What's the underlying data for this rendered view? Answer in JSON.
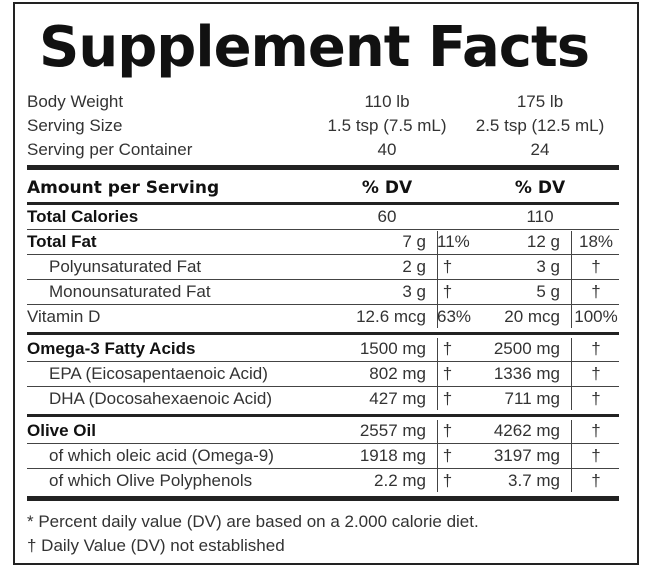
{
  "title": "Supplement Facts",
  "info": [
    {
      "label": "Body Weight",
      "col1": "110 lb",
      "col2": "175 lb"
    },
    {
      "label": "Serving Size",
      "col1": "1.5 tsp (7.5 mL)",
      "col2": "2.5 tsp (12.5 mL)"
    },
    {
      "label": "Serving per Container",
      "col1": "40",
      "col2": "24"
    }
  ],
  "header": {
    "amount": "Amount per Serving",
    "dv1": "% DV",
    "dv2": "% DV"
  },
  "rows": [
    {
      "name": "Total Calories",
      "a": "60",
      "b": "",
      "c": "110",
      "d": ""
    },
    {
      "name": "Total Fat",
      "a": "7 g",
      "b": "11%",
      "c": "12 g",
      "d": "18%"
    },
    {
      "name": "Polyunsaturated Fat",
      "a": "2 g",
      "b": "†",
      "c": "3 g",
      "d": "†"
    },
    {
      "name": "Monounsaturated Fat",
      "a": "3 g",
      "b": "†",
      "c": "5 g",
      "d": "†"
    },
    {
      "name": "Vitamin D",
      "a": "12.6 mcg",
      "b": "63%",
      "c": "20 mcg",
      "d": "100%"
    },
    {
      "name": "Omega-3 Fatty Acids",
      "a": "1500 mg",
      "b": "†",
      "c": "2500 mg",
      "d": "†"
    },
    {
      "name": "EPA (Eicosapentaenoic Acid)",
      "a": "802 mg",
      "b": "†",
      "c": "1336 mg",
      "d": "†"
    },
    {
      "name": "DHA (Docosahexaenoic Acid)",
      "a": "427 mg",
      "b": "†",
      "c": "711 mg",
      "d": "†"
    },
    {
      "name": "Olive Oil",
      "a": "2557 mg",
      "b": "†",
      "c": "4262 mg",
      "d": "†"
    },
    {
      "name": "of which oleic acid (Omega-9)",
      "a": "1918 mg",
      "b": "†",
      "c": "3197 mg",
      "d": "†"
    },
    {
      "name": "of which Olive Polyphenols",
      "a": "2.2 mg",
      "b": "†",
      "c": "3.7 mg",
      "d": "†"
    }
  ],
  "footnotes": [
    "* Percent daily value (DV) are based on a 2.000 calorie diet.",
    "† Daily Value (DV) not established"
  ]
}
